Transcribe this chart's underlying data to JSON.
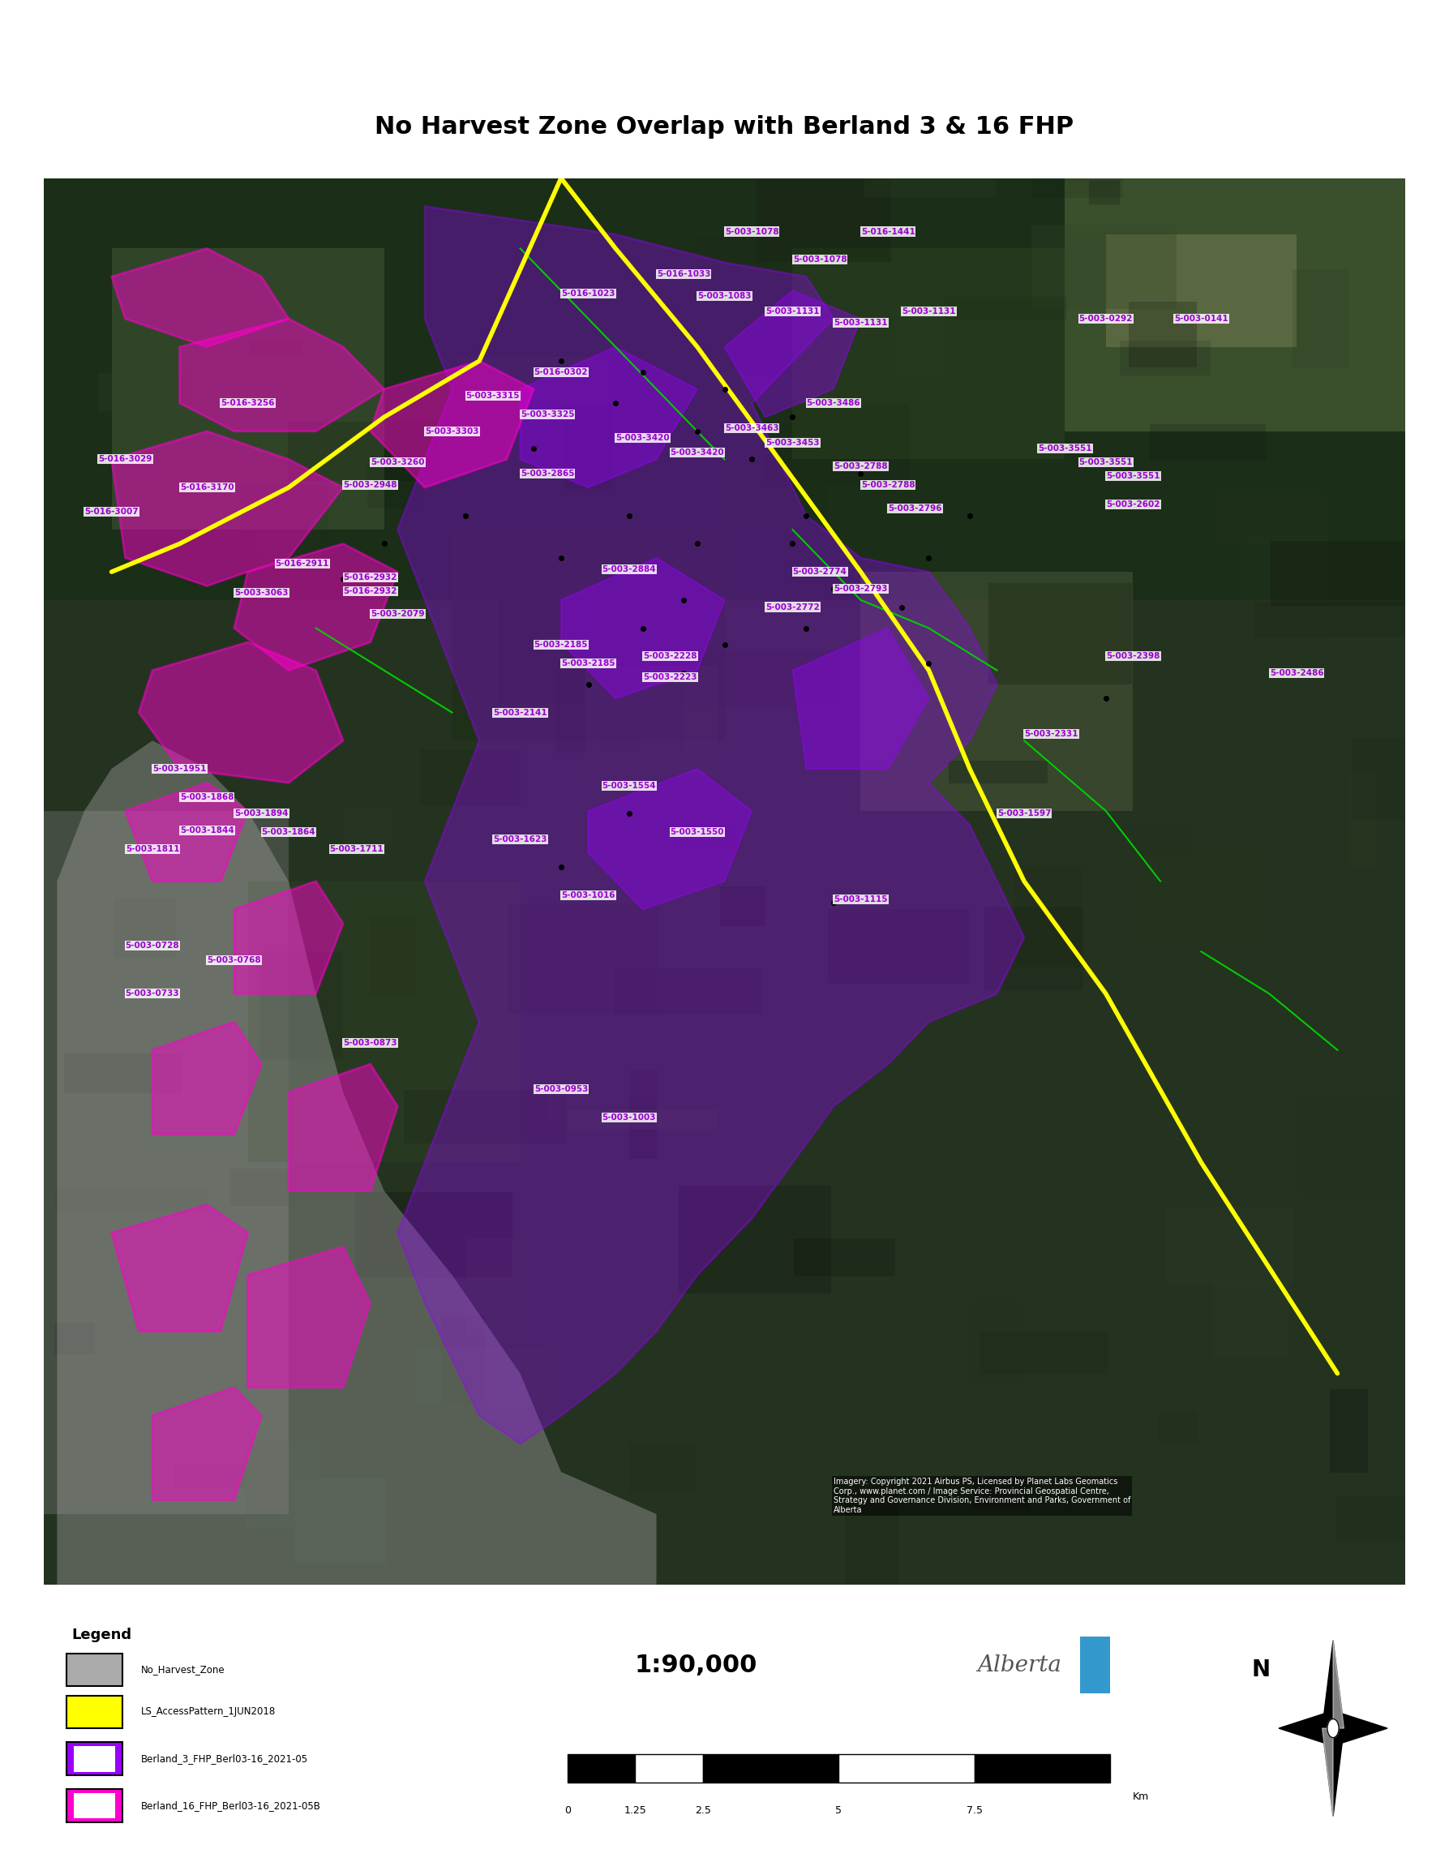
{
  "title": "No Harvest Zone Overlap with Berland 3 & 16 FHP",
  "title_fontsize": 22,
  "title_fontweight": "bold",
  "figure_bg": "#ffffff",
  "map_bg": "#2d3a2a",
  "outer_border_color": "#000000",
  "outer_border_lw": 3,
  "map_border_color": "#000000",
  "map_border_lw": 2,
  "legend_title": "Legend",
  "legend_items": [
    {
      "label": "No_Harvest_Zone",
      "color": "#aaaaaa",
      "type": "patch"
    },
    {
      "label": "LS_AccessPattern_1JUN2018",
      "color": "#ffff00",
      "type": "patch"
    },
    {
      "label": "Berland_3_FHP_Berl03-16_2021-05",
      "color": "#aa00ff",
      "type": "patch_outline"
    },
    {
      "label": "Berland_16_FHP_Berl03-16_2021-05B",
      "color": "#ff00aa",
      "type": "patch_outline"
    }
  ],
  "scale_text": "1:90,000",
  "scale_fontsize": 28,
  "scale_ticks": [
    "0",
    "1.25",
    "2.5",
    "5",
    "7.5"
  ],
  "scale_unit": "Km",
  "imagery_credit": "Imagery: Copyright 2021 Airbus DS, Licensed by Planet Labs Geomatics\nCorp., www.planet.com / Image Service: Provincial Geospatial Centre,\nStrategy and Governance Division, Environment and Parks, Government of\nAlberta",
  "no_harvest_zone_color": "#999999",
  "no_harvest_zone_alpha": 0.45,
  "yellow_road_color": "#ffff00",
  "purple_outline_color": "#9900ff",
  "magenta_outline_color": "#ff00cc",
  "green_line_color": "#00cc00",
  "labels": [
    "5-003-1078",
    "5-016-1441",
    "5-003-1078",
    "5-016-1033",
    "5-016-1023",
    "5-003-1083",
    "5-003-1131",
    "5-003-1131",
    "5-003-1131",
    "5-003-0292",
    "5-003-0141",
    "5-016-0302",
    "5-016-3256",
    "5-003-3315",
    "5-003-3325",
    "5-003-3303",
    "5-003-3486",
    "5-003-3463",
    "5-003-3453",
    "5-003-3420",
    "5-003-3420",
    "5-016-3029",
    "5-016-3170",
    "5-003-3260",
    "5-003-2948",
    "5-003-2865",
    "5-003-2788",
    "5-003-2788",
    "5-003-2796",
    "5-003-3551",
    "5-003-3551",
    "5-003-3551",
    "5-003-2602",
    "5-016-3007",
    "5-016-2911",
    "5-016-2932",
    "5-016-2932",
    "5-003-3063",
    "5-003-2079",
    "5-003-2884",
    "5-003-2774",
    "5-003-2793",
    "5-003-2772",
    "5-003-2185",
    "5-003-2185",
    "5-003-2228",
    "5-003-2223",
    "5-003-2398",
    "5-003-2486",
    "5-003-2141",
    "5-003-2331",
    "5-003-1951",
    "5-003-1868",
    "5-003-1894",
    "5-003-1844",
    "5-003-1864",
    "5-003-1811",
    "5-003-1711",
    "5-003-1554",
    "5-003-1597",
    "5-003-1623",
    "5-003-1550",
    "5-003-1016",
    "5-003-1115",
    "5-003-0728",
    "5-003-0768",
    "5-003-0733",
    "5-003-0873",
    "5-003-0953",
    "5-003-1003"
  ],
  "label_color": "#ffffff",
  "label_bg": "#ffffff",
  "label_fontsize": 7.5,
  "dot_color": "#000000",
  "alberta_logo_color": "#4499cc"
}
